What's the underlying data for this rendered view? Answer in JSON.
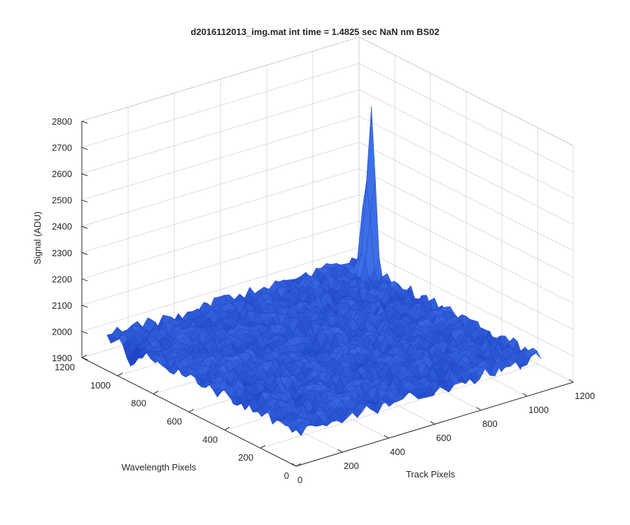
{
  "chart_data": {
    "type": "surface3d",
    "title": "d2016112013_img.mat int time = 1.4825 sec  NaN nm BS02",
    "xlabel": "Track Pixels",
    "ylabel": "Wavelength Pixels",
    "zlabel": "Signal (ADU)",
    "xlim": [
      0,
      1200
    ],
    "ylim": [
      0,
      1200
    ],
    "zlim": [
      1900,
      2800
    ],
    "x_ticks": [
      0,
      200,
      400,
      600,
      800,
      1000,
      1200
    ],
    "y_ticks": [
      0,
      200,
      400,
      600,
      800,
      1000,
      1200
    ],
    "z_ticks": [
      1900,
      2000,
      2100,
      2200,
      2300,
      2400,
      2500,
      2600,
      2700,
      2800
    ],
    "grid": true,
    "colormap": "parula",
    "surface_color": "#2e57d8",
    "surface_edge_color": "#1f3fbf",
    "baseline_signal": 2030,
    "noise_amplitude": 25,
    "features": [
      {
        "kind": "peak",
        "x": 1060,
        "y": 950,
        "value": 2650
      },
      {
        "kind": "dip",
        "x": 0,
        "y": 920,
        "value": 1940
      }
    ]
  }
}
